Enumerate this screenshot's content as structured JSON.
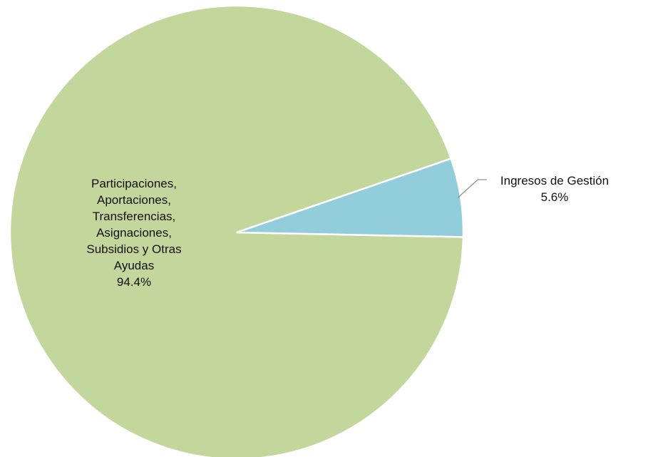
{
  "chart_data": {
    "type": "pie",
    "title": "",
    "slices": [
      {
        "label_lines": [
          "Participaciones,",
          "Aportaciones,",
          "Transferencias,",
          "Asignaciones,",
          "Subsidios y Otras",
          "Ayudas"
        ],
        "value": 94.4,
        "value_label": "94.4%",
        "color": "#C3D69B"
      },
      {
        "label_lines": [
          "Ingresos de Gestión"
        ],
        "value": 5.6,
        "value_label": "5.6%",
        "color": "#92CDDC"
      }
    ],
    "legend": "none",
    "data_labels": "category-name-and-percent"
  }
}
